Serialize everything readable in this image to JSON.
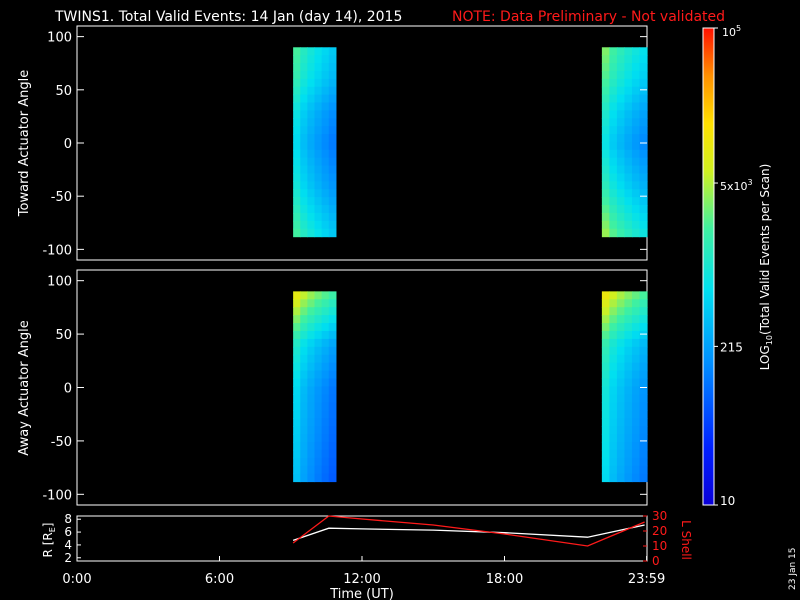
{
  "header": {
    "title": "TWINS1. Total Valid Events: 14 Jan (day  14), 2015",
    "note": "NOTE: Data Preliminary - Not validated",
    "note_color": "#ff1a1a"
  },
  "footer": {
    "date_stamp": "23 Jan 15"
  },
  "chart_data": [
    {
      "type": "heatmap",
      "ylabel": "Toward Actuator Angle",
      "ylim": [
        -110,
        110
      ],
      "yticks": [
        "100",
        "50",
        "0",
        "-50",
        "-100"
      ],
      "x_unit": "hours UT",
      "angle_range": [
        -88,
        90
      ],
      "data_intervals": [
        [
          9.1,
          10.9
        ],
        [
          22.1,
          24.0
        ]
      ],
      "profile_interval_1": [
        [
          90,
          3.0
        ],
        [
          60,
          2.85
        ],
        [
          30,
          2.55
        ],
        [
          0,
          2.4
        ],
        [
          -40,
          2.6
        ],
        [
          -88,
          3.0
        ]
      ],
      "profile_interval_2": [
        [
          90,
          3.2
        ],
        [
          60,
          3.0
        ],
        [
          30,
          2.7
        ],
        [
          0,
          2.5
        ],
        [
          -40,
          2.8
        ],
        [
          -88,
          3.3
        ]
      ]
    },
    {
      "type": "heatmap",
      "ylabel": "Away Actuator Angle",
      "ylim": [
        -110,
        110
      ],
      "yticks": [
        "100",
        "50",
        "0",
        "-50",
        "-100"
      ],
      "x_unit": "hours UT",
      "angle_range": [
        -88,
        90
      ],
      "data_intervals": [
        [
          9.1,
          10.9
        ],
        [
          22.1,
          24.0
        ]
      ],
      "profile_interval_1": [
        [
          90,
          3.7
        ],
        [
          70,
          3.3
        ],
        [
          40,
          2.7
        ],
        [
          0,
          2.4
        ],
        [
          -50,
          2.3
        ],
        [
          -88,
          2.2
        ]
      ],
      "profile_interval_2": [
        [
          90,
          3.75
        ],
        [
          70,
          3.4
        ],
        [
          40,
          2.85
        ],
        [
          0,
          2.6
        ],
        [
          -50,
          2.5
        ],
        [
          -88,
          2.4
        ]
      ]
    },
    {
      "type": "line",
      "xlabel": "Time (UT)",
      "xticks": [
        "0:00",
        "6:00",
        "12:00",
        "18:00",
        "23:59"
      ],
      "xlim": [
        0,
        24
      ],
      "ylabel_left": "R [R",
      "ylabel_left_sub": "E",
      "ylabel_left_tail": "]",
      "ylim_left": [
        1.5,
        8.5
      ],
      "yticks_left": [
        "8",
        "6",
        "4",
        "2"
      ],
      "ylabel_right": "L Shell",
      "ylim_right": [
        0,
        30
      ],
      "yticks_right": [
        "30",
        "20",
        "10",
        "0"
      ],
      "series": [
        {
          "color": "#ffffff",
          "axis": "left",
          "x": [
            9.1,
            10.6,
            12.0,
            15.0,
            18.0,
            21.5,
            23.9
          ],
          "y": [
            4.7,
            6.6,
            6.5,
            6.3,
            5.9,
            5.2,
            7.1
          ]
        },
        {
          "color": "#ff1a1a",
          "axis": "right",
          "x": [
            9.1,
            10.6,
            12.0,
            15.0,
            18.0,
            21.5,
            23.9
          ],
          "y": [
            12.0,
            30.0,
            28.0,
            24.0,
            18.0,
            10.0,
            26.0
          ]
        }
      ]
    }
  ],
  "colorbar": {
    "label_main": "LOG",
    "label_sub": "10",
    "label_tail": "(Total Valid  Events per Scan)",
    "log_range": [
      1,
      5
    ],
    "tick_top_base": "10",
    "tick_top_exp": "5",
    "tick_mid_mant": "5x10",
    "tick_mid_exp": "3",
    "tick_mid_log": 3.7,
    "tick_215": "215",
    "tick_215_log": 2.33,
    "tick_bottom": "10",
    "tick_bottom_log": 1
  }
}
